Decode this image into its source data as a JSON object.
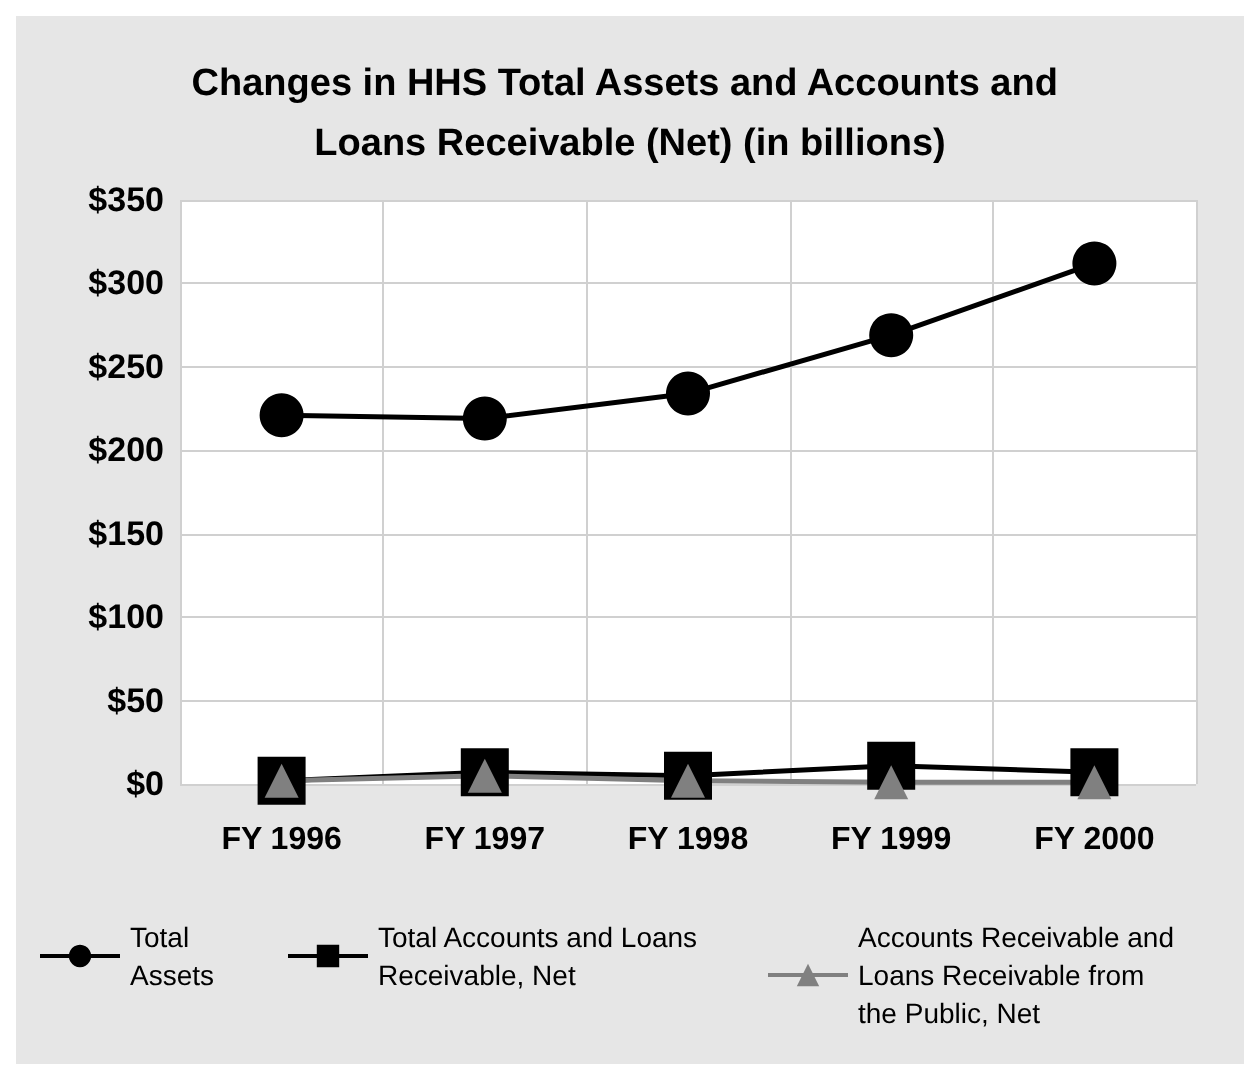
{
  "chart_data": {
    "type": "line",
    "title": "Changes in HHS Total Assets and Accounts and Loans Receivable (Net) (in billions)",
    "categories": [
      "FY 1996",
      "FY 1997",
      "FY 1998",
      "FY 1999",
      "FY 2000"
    ],
    "series": [
      {
        "name": "Total Assets",
        "color": "#000000",
        "marker": "circle",
        "values": [
          221,
          219,
          234,
          269,
          312
        ]
      },
      {
        "name": "Total Accounts and Loans Receivable, Net",
        "color": "#000000",
        "marker": "square",
        "values": [
          2,
          7,
          5,
          11,
          7
        ]
      },
      {
        "name": "Accounts Receivable and Loans Receivable from the Public, Net",
        "color": "#808080",
        "marker": "triangle",
        "values": [
          2,
          5,
          2,
          1,
          1
        ]
      }
    ],
    "ylim": [
      0,
      350
    ],
    "yticks": [
      {
        "value": 0,
        "label": "$0"
      },
      {
        "value": 50,
        "label": "$50"
      },
      {
        "value": 100,
        "label": "$100"
      },
      {
        "value": 150,
        "label": "$150"
      },
      {
        "value": 200,
        "label": "$200"
      },
      {
        "value": 250,
        "label": "$250"
      },
      {
        "value": 300,
        "label": "$300"
      },
      {
        "value": 350,
        "label": "$350"
      }
    ],
    "grid": true,
    "legend": "bottom"
  }
}
